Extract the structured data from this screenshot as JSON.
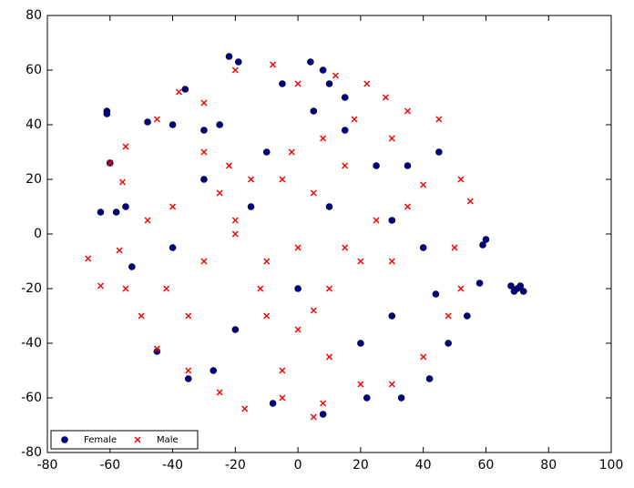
{
  "chart_data": {
    "type": "scatter",
    "xlim": [
      -80,
      100
    ],
    "xticks": [
      -80,
      -60,
      -40,
      -20,
      0,
      20,
      40,
      60,
      80,
      100
    ],
    "ylim": [
      -80,
      80
    ],
    "yticks": [
      -80,
      -60,
      -40,
      -20,
      0,
      20,
      40,
      60,
      80
    ],
    "legend": "lower left",
    "series": [
      {
        "name": "Female",
        "color": "#00008b",
        "marker": "o",
        "x": [
          -61,
          -61,
          70,
          69,
          71,
          68,
          72,
          60,
          59,
          -22,
          -19,
          4,
          8,
          10,
          -25,
          -30,
          -40,
          -48,
          -36,
          -60,
          -58,
          -63,
          -53,
          -45,
          -35,
          -27,
          -8,
          8,
          22,
          33,
          42,
          48,
          54,
          58,
          -55,
          -30,
          -10,
          5,
          15,
          25,
          30,
          40,
          44,
          -20,
          0,
          10,
          20,
          -40,
          -15,
          30,
          35,
          45,
          -5,
          15
        ],
        "values": [
          45,
          44,
          -20,
          -21,
          -19,
          -19,
          -21,
          -2,
          -4,
          65,
          63,
          63,
          60,
          55,
          40,
          38,
          40,
          41,
          53,
          26,
          8,
          8,
          -12,
          -43,
          -53,
          -50,
          -62,
          -66,
          -60,
          -60,
          -53,
          -40,
          -30,
          -18,
          10,
          20,
          30,
          45,
          38,
          25,
          5,
          -5,
          -22,
          -35,
          -20,
          10,
          -40,
          -5,
          10,
          -30,
          25,
          30,
          55,
          50
        ]
      },
      {
        "name": "Male",
        "color": "#ff0000",
        "marker": "x",
        "x": [
          -60,
          -63,
          -67,
          -57,
          -56,
          -55,
          -45,
          -38,
          -30,
          -20,
          -8,
          0,
          12,
          22,
          28,
          35,
          45,
          52,
          55,
          50,
          52,
          48,
          40,
          30,
          20,
          8,
          5,
          -5,
          -17,
          -25,
          -35,
          -45,
          -50,
          -55,
          -42,
          -30,
          -20,
          -10,
          0,
          10,
          20,
          30,
          -25,
          -15,
          -5,
          5,
          15,
          -30,
          -20,
          -10,
          0,
          10,
          -5,
          -35,
          25,
          35,
          40,
          -22,
          -12,
          5,
          15,
          -48,
          -40,
          -2,
          8,
          18,
          30
        ],
        "values": [
          26,
          -19,
          -9,
          -6,
          19,
          32,
          42,
          52,
          48,
          60,
          62,
          55,
          58,
          55,
          50,
          45,
          42,
          20,
          12,
          -5,
          -20,
          -30,
          -45,
          -55,
          -55,
          -62,
          -67,
          -60,
          -64,
          -58,
          -50,
          -42,
          -30,
          -20,
          -20,
          -10,
          0,
          -10,
          -5,
          -20,
          -10,
          -10,
          15,
          20,
          20,
          15,
          25,
          30,
          5,
          -30,
          -35,
          -45,
          -50,
          -30,
          5,
          10,
          18,
          25,
          -20,
          -28,
          -5,
          5,
          10,
          30,
          35,
          42,
          35
        ]
      }
    ]
  }
}
